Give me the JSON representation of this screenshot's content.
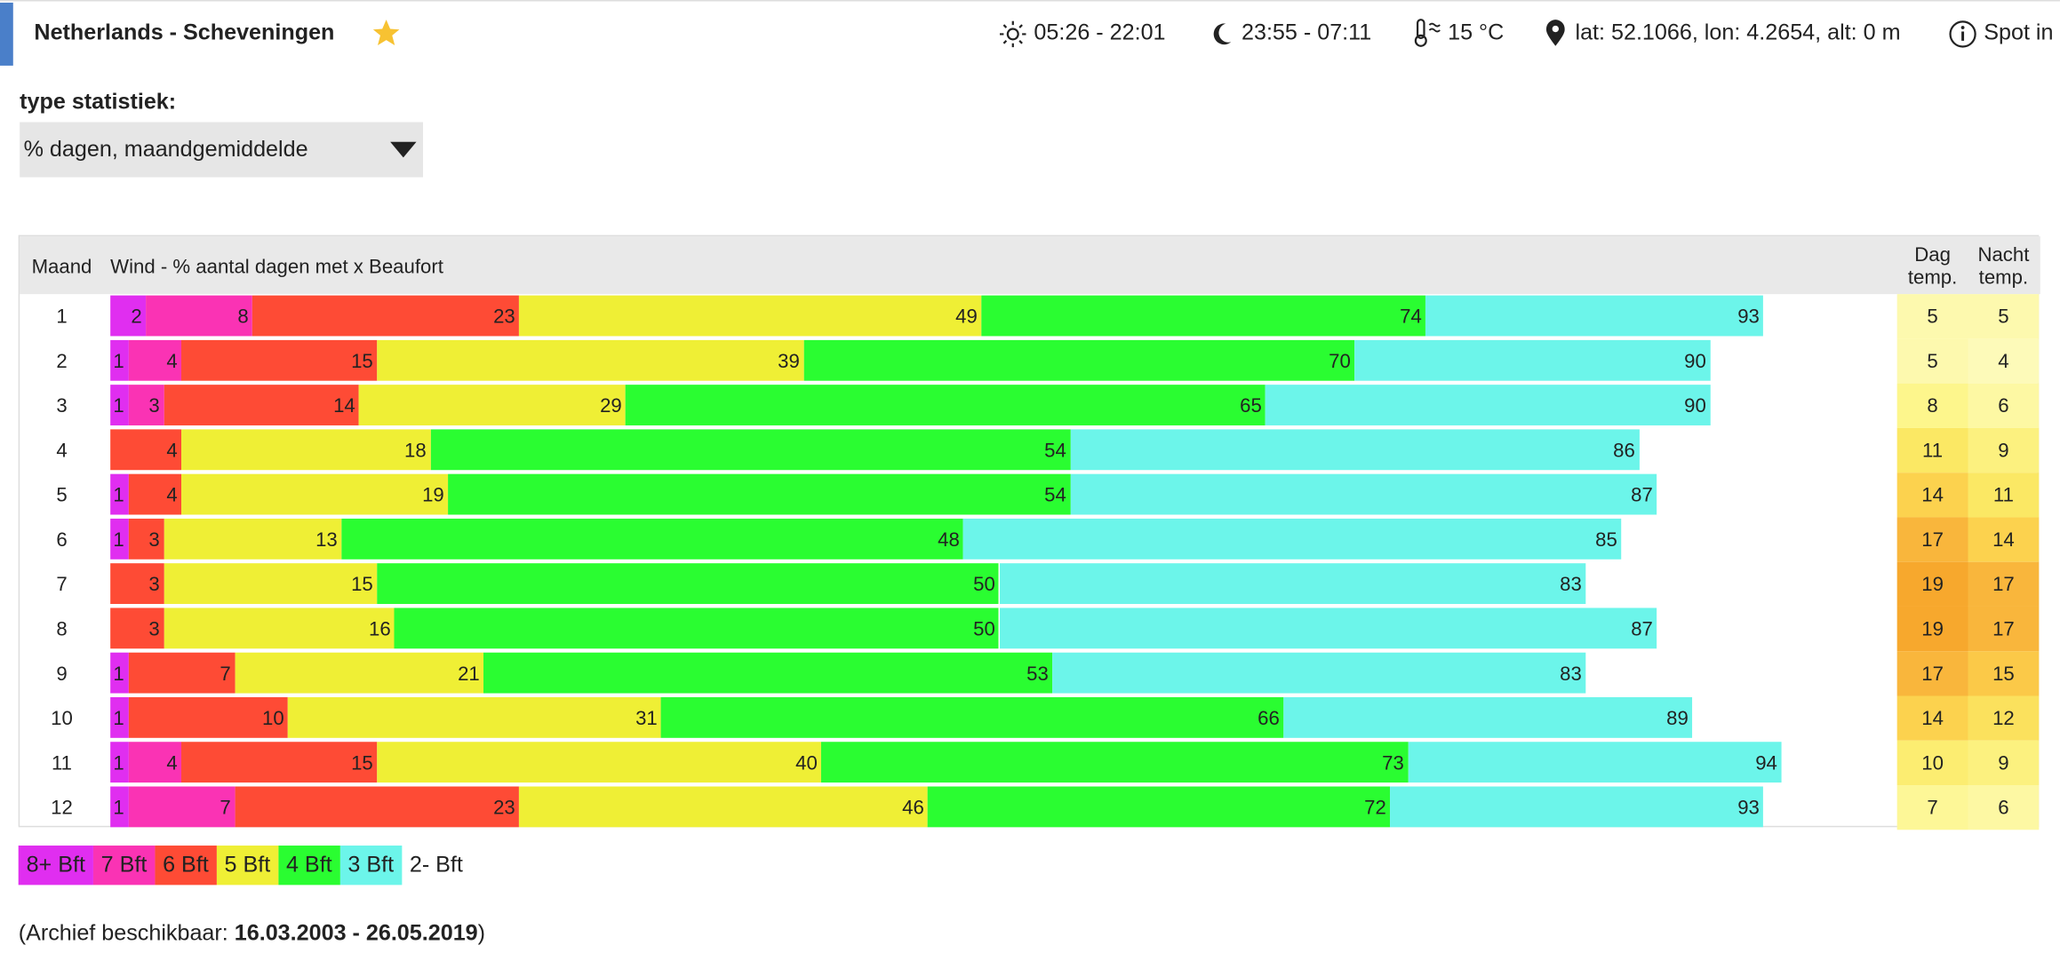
{
  "header": {
    "title": "Netherlands - Scheveningen",
    "sun": "05:26 - 22:01",
    "moon": "23:55 - 07:11",
    "temperature": "15 °C",
    "location": "lat: 52.1066, lon: 4.2654, alt: 0 m",
    "info": "Spot in"
  },
  "stat_type": {
    "label": "type statistiek:",
    "selected": "% dagen, maandgemiddelde"
  },
  "table": {
    "columns": [
      "Maand",
      "Wind - % aantal dagen met x Beaufort",
      "Dag temp.",
      "Nacht temp."
    ],
    "rows": [
      {
        "month": "1",
        "wind": [
          2,
          8,
          23,
          49,
          74,
          93
        ],
        "day": 5,
        "night": 5
      },
      {
        "month": "2",
        "wind": [
          1,
          4,
          15,
          39,
          70,
          90
        ],
        "day": 5,
        "night": 4
      },
      {
        "month": "3",
        "wind": [
          1,
          3,
          14,
          29,
          65,
          90
        ],
        "day": 8,
        "night": 6
      },
      {
        "month": "4",
        "wind": [
          null,
          null,
          4,
          18,
          54,
          86
        ],
        "day": 11,
        "night": 9
      },
      {
        "month": "5",
        "wind": [
          1,
          null,
          4,
          19,
          54,
          87
        ],
        "day": 14,
        "night": 11
      },
      {
        "month": "6",
        "wind": [
          1,
          null,
          3,
          13,
          48,
          85
        ],
        "day": 17,
        "night": 14
      },
      {
        "month": "7",
        "wind": [
          null,
          null,
          3,
          15,
          50,
          83
        ],
        "day": 19,
        "night": 17
      },
      {
        "month": "8",
        "wind": [
          null,
          null,
          3,
          16,
          50,
          87
        ],
        "day": 19,
        "night": 17
      },
      {
        "month": "9",
        "wind": [
          1,
          null,
          7,
          21,
          53,
          83
        ],
        "day": 17,
        "night": 15
      },
      {
        "month": "10",
        "wind": [
          1,
          null,
          10,
          31,
          66,
          89
        ],
        "day": 14,
        "night": 12
      },
      {
        "month": "11",
        "wind": [
          1,
          4,
          15,
          40,
          73,
          94
        ],
        "day": 10,
        "night": 9
      },
      {
        "month": "12",
        "wind": [
          1,
          7,
          23,
          46,
          72,
          93
        ],
        "day": 7,
        "night": 6
      }
    ]
  },
  "legend": [
    {
      "label": "8+ Bft",
      "color": "#e02ef0"
    },
    {
      "label": "7 Bft",
      "color": "#fa33b4"
    },
    {
      "label": "6 Bft",
      "color": "#fe4b35"
    },
    {
      "label": "5 Bft",
      "color": "#efef35"
    },
    {
      "label": "4 Bft",
      "color": "#2afd31"
    },
    {
      "label": "3 Bft",
      "color": "#6cf5ea"
    },
    {
      "label": "2- Bft",
      "color": null
    }
  ],
  "archive": {
    "prefix": "(Archief beschikbaar:",
    "range": "16.03.2003 - 26.05.2019",
    "suffix": ")"
  }
}
